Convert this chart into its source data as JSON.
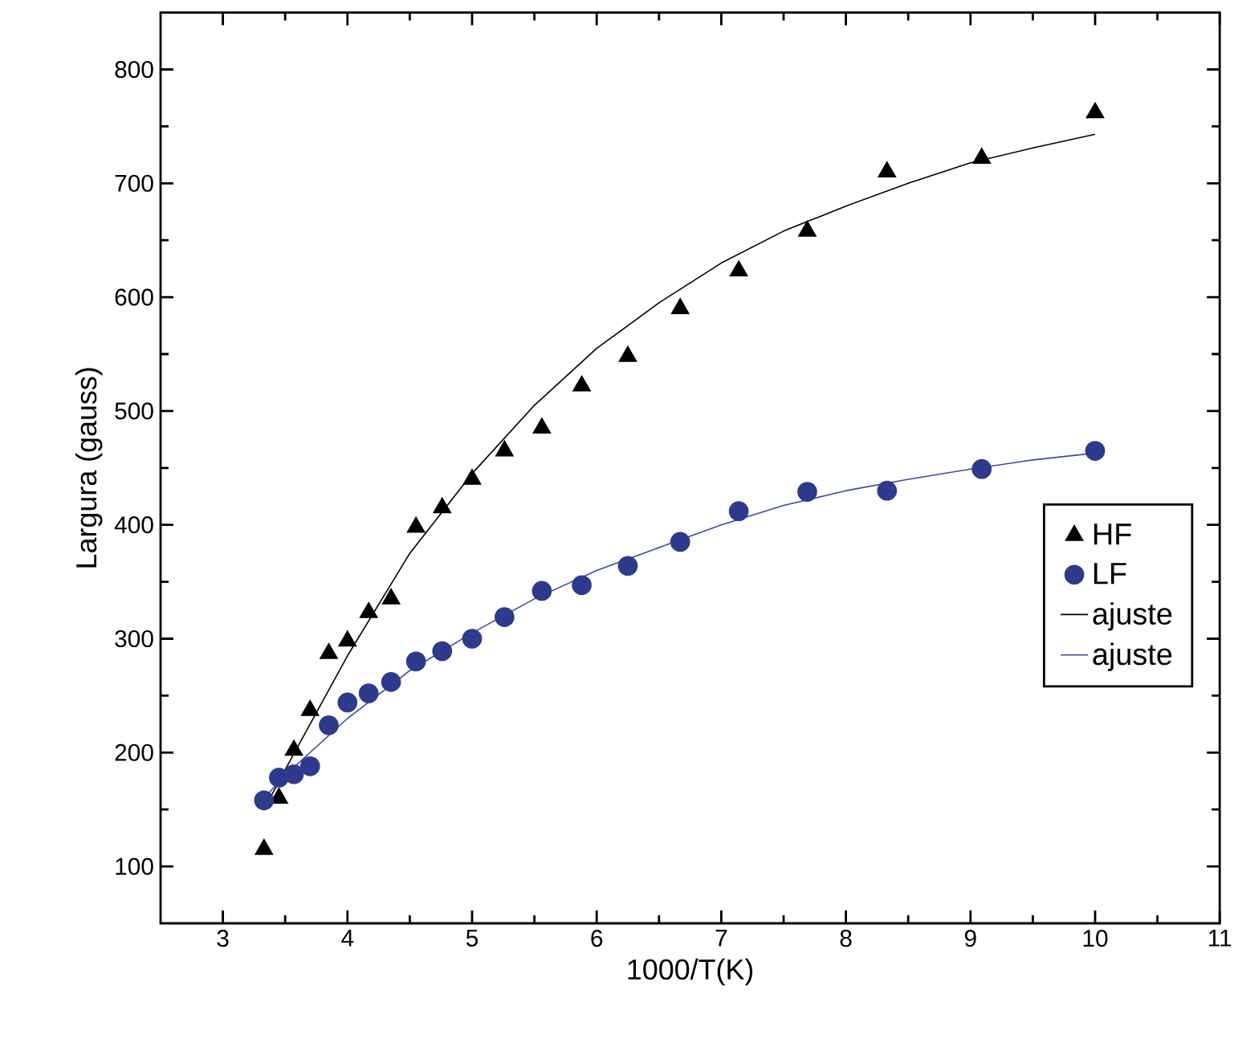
{
  "chart_data": {
    "type": "scatter",
    "xlabel": "1000/T(K)",
    "ylabel": "Largura (gauss)",
    "xlim": [
      2.5,
      11
    ],
    "ylim": [
      50,
      850
    ],
    "xticks": [
      3,
      4,
      5,
      6,
      7,
      8,
      9,
      10,
      11
    ],
    "yticks": [
      100,
      200,
      300,
      400,
      500,
      600,
      700,
      800
    ],
    "grid": false,
    "legend": "right",
    "series": [
      {
        "name": "HF",
        "marker": "triangle",
        "color": "#000000",
        "x": [
          3.33,
          3.45,
          3.57,
          3.7,
          3.85,
          4.0,
          4.17,
          4.35,
          4.55,
          4.76,
          5.0,
          5.26,
          5.56,
          5.88,
          6.25,
          6.67,
          7.14,
          7.69,
          8.33,
          9.09,
          10
        ],
        "values": [
          115,
          160,
          202,
          237,
          287,
          298,
          323,
          335,
          398,
          415,
          440,
          465,
          485,
          522,
          548,
          590,
          623,
          658,
          710,
          722,
          762
        ]
      },
      {
        "name": "LF",
        "marker": "circle",
        "color": "#2e3a8c",
        "x": [
          3.33,
          3.45,
          3.57,
          3.7,
          3.85,
          4.0,
          4.17,
          4.35,
          4.55,
          4.76,
          5.0,
          5.26,
          5.56,
          5.88,
          6.25,
          6.67,
          7.14,
          7.69,
          8.33,
          9.09,
          10
        ],
        "values": [
          158,
          178,
          181,
          188,
          224,
          244,
          252,
          262,
          280,
          289,
          300,
          319,
          342,
          347,
          364,
          385,
          412,
          429,
          430,
          449,
          465
        ]
      },
      {
        "name": "ajuste",
        "type": "line",
        "marker": "none",
        "line_style": "solid",
        "color": "#000000",
        "x": [
          3.33,
          3.5,
          4,
          4.5,
          5,
          5.5,
          6,
          6.5,
          7,
          7.5,
          8,
          8.5,
          9,
          9.5,
          10
        ],
        "values": [
          150,
          185,
          285,
          375,
          445,
          505,
          555,
          595,
          630,
          658,
          680,
          700,
          718,
          731,
          743
        ]
      },
      {
        "name": "ajuste",
        "type": "line",
        "marker": "none",
        "line_style": "solid",
        "color": "#3a4aa8",
        "x": [
          3.33,
          3.5,
          4,
          4.5,
          5,
          5.5,
          6,
          6.5,
          7,
          7.5,
          8,
          8.5,
          9,
          9.5,
          10
        ],
        "values": [
          160,
          180,
          230,
          272,
          305,
          335,
          360,
          380,
          400,
          417,
          430,
          440,
          449,
          457,
          463
        ]
      }
    ]
  }
}
